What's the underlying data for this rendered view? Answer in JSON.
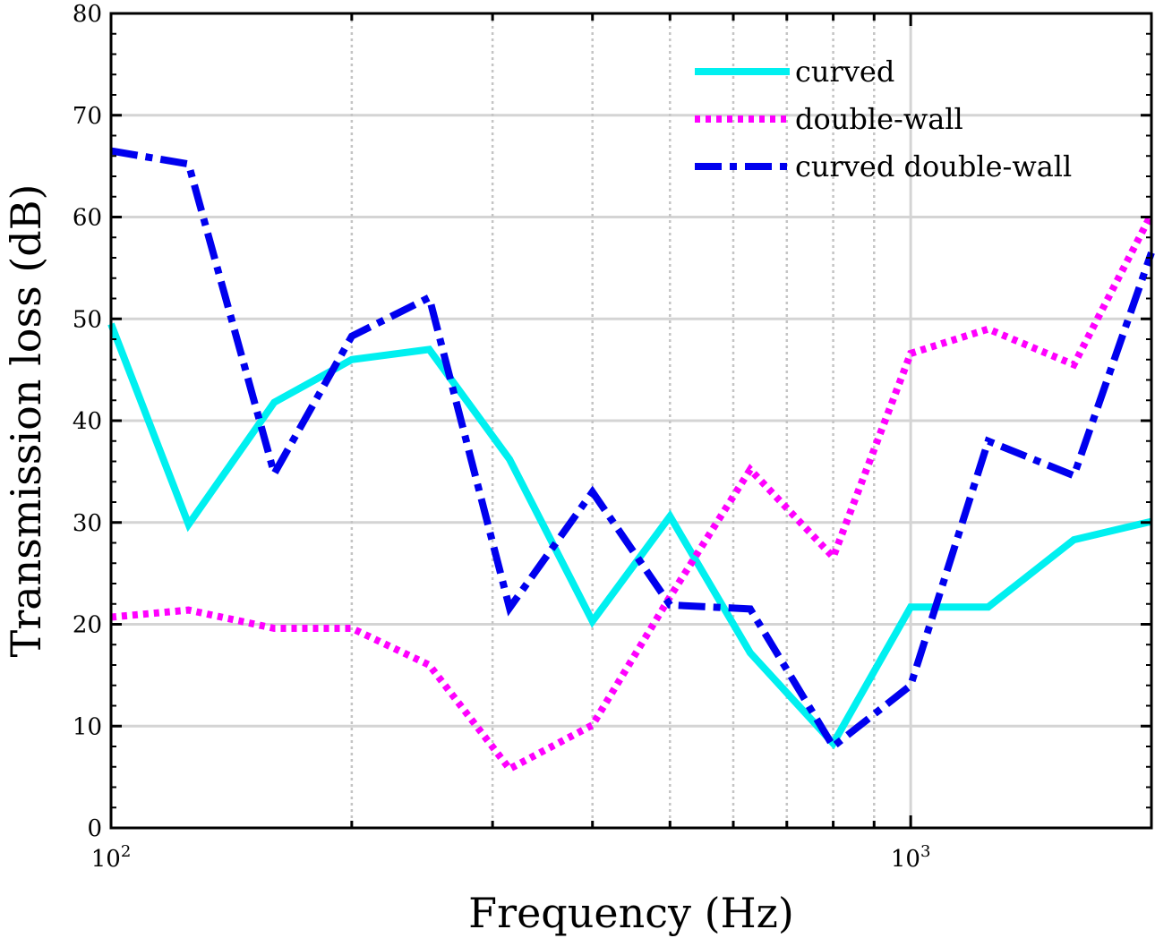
{
  "chart_data": {
    "type": "line",
    "xlabel": "Frequency (Hz)",
    "ylabel": "Transmission loss (dB)",
    "x_scale": "log",
    "xlim": [
      100,
      2000
    ],
    "ylim": [
      0,
      80
    ],
    "x": [
      100,
      125,
      160,
      200,
      250,
      315,
      400,
      500,
      630,
      800,
      1000,
      1250,
      1600,
      2000
    ],
    "x_ticks": [
      {
        "value": 100,
        "base": "10",
        "exp": "2"
      },
      {
        "value": 1000,
        "base": "10",
        "exp": "3"
      }
    ],
    "y_ticks": [
      0,
      10,
      20,
      30,
      40,
      50,
      60,
      70,
      80
    ],
    "grid": true,
    "legend_position": "top-right",
    "series": [
      {
        "name": "curved",
        "color": "#00f0f0",
        "style": "solid",
        "values": [
          49.5,
          29.8,
          41.8,
          46.0,
          47.0,
          36.2,
          20.3,
          30.6,
          17.2,
          8.3,
          21.7,
          21.7,
          28.3,
          30.1
        ]
      },
      {
        "name": "double-wall",
        "color": "#ff00ff",
        "style": "dotted",
        "values": [
          20.7,
          21.4,
          19.6,
          19.6,
          16.0,
          5.8,
          10.1,
          22.7,
          35.2,
          26.6,
          46.6,
          49.0,
          45.5,
          60.3
        ]
      },
      {
        "name": "curved double-wall",
        "color": "#0000ee",
        "style": "dashdot",
        "values": [
          66.5,
          65.2,
          34.8,
          48.3,
          52.1,
          21.6,
          33.0,
          21.9,
          21.5,
          8.0,
          14.0,
          38.0,
          34.6,
          56.5
        ]
      }
    ]
  }
}
